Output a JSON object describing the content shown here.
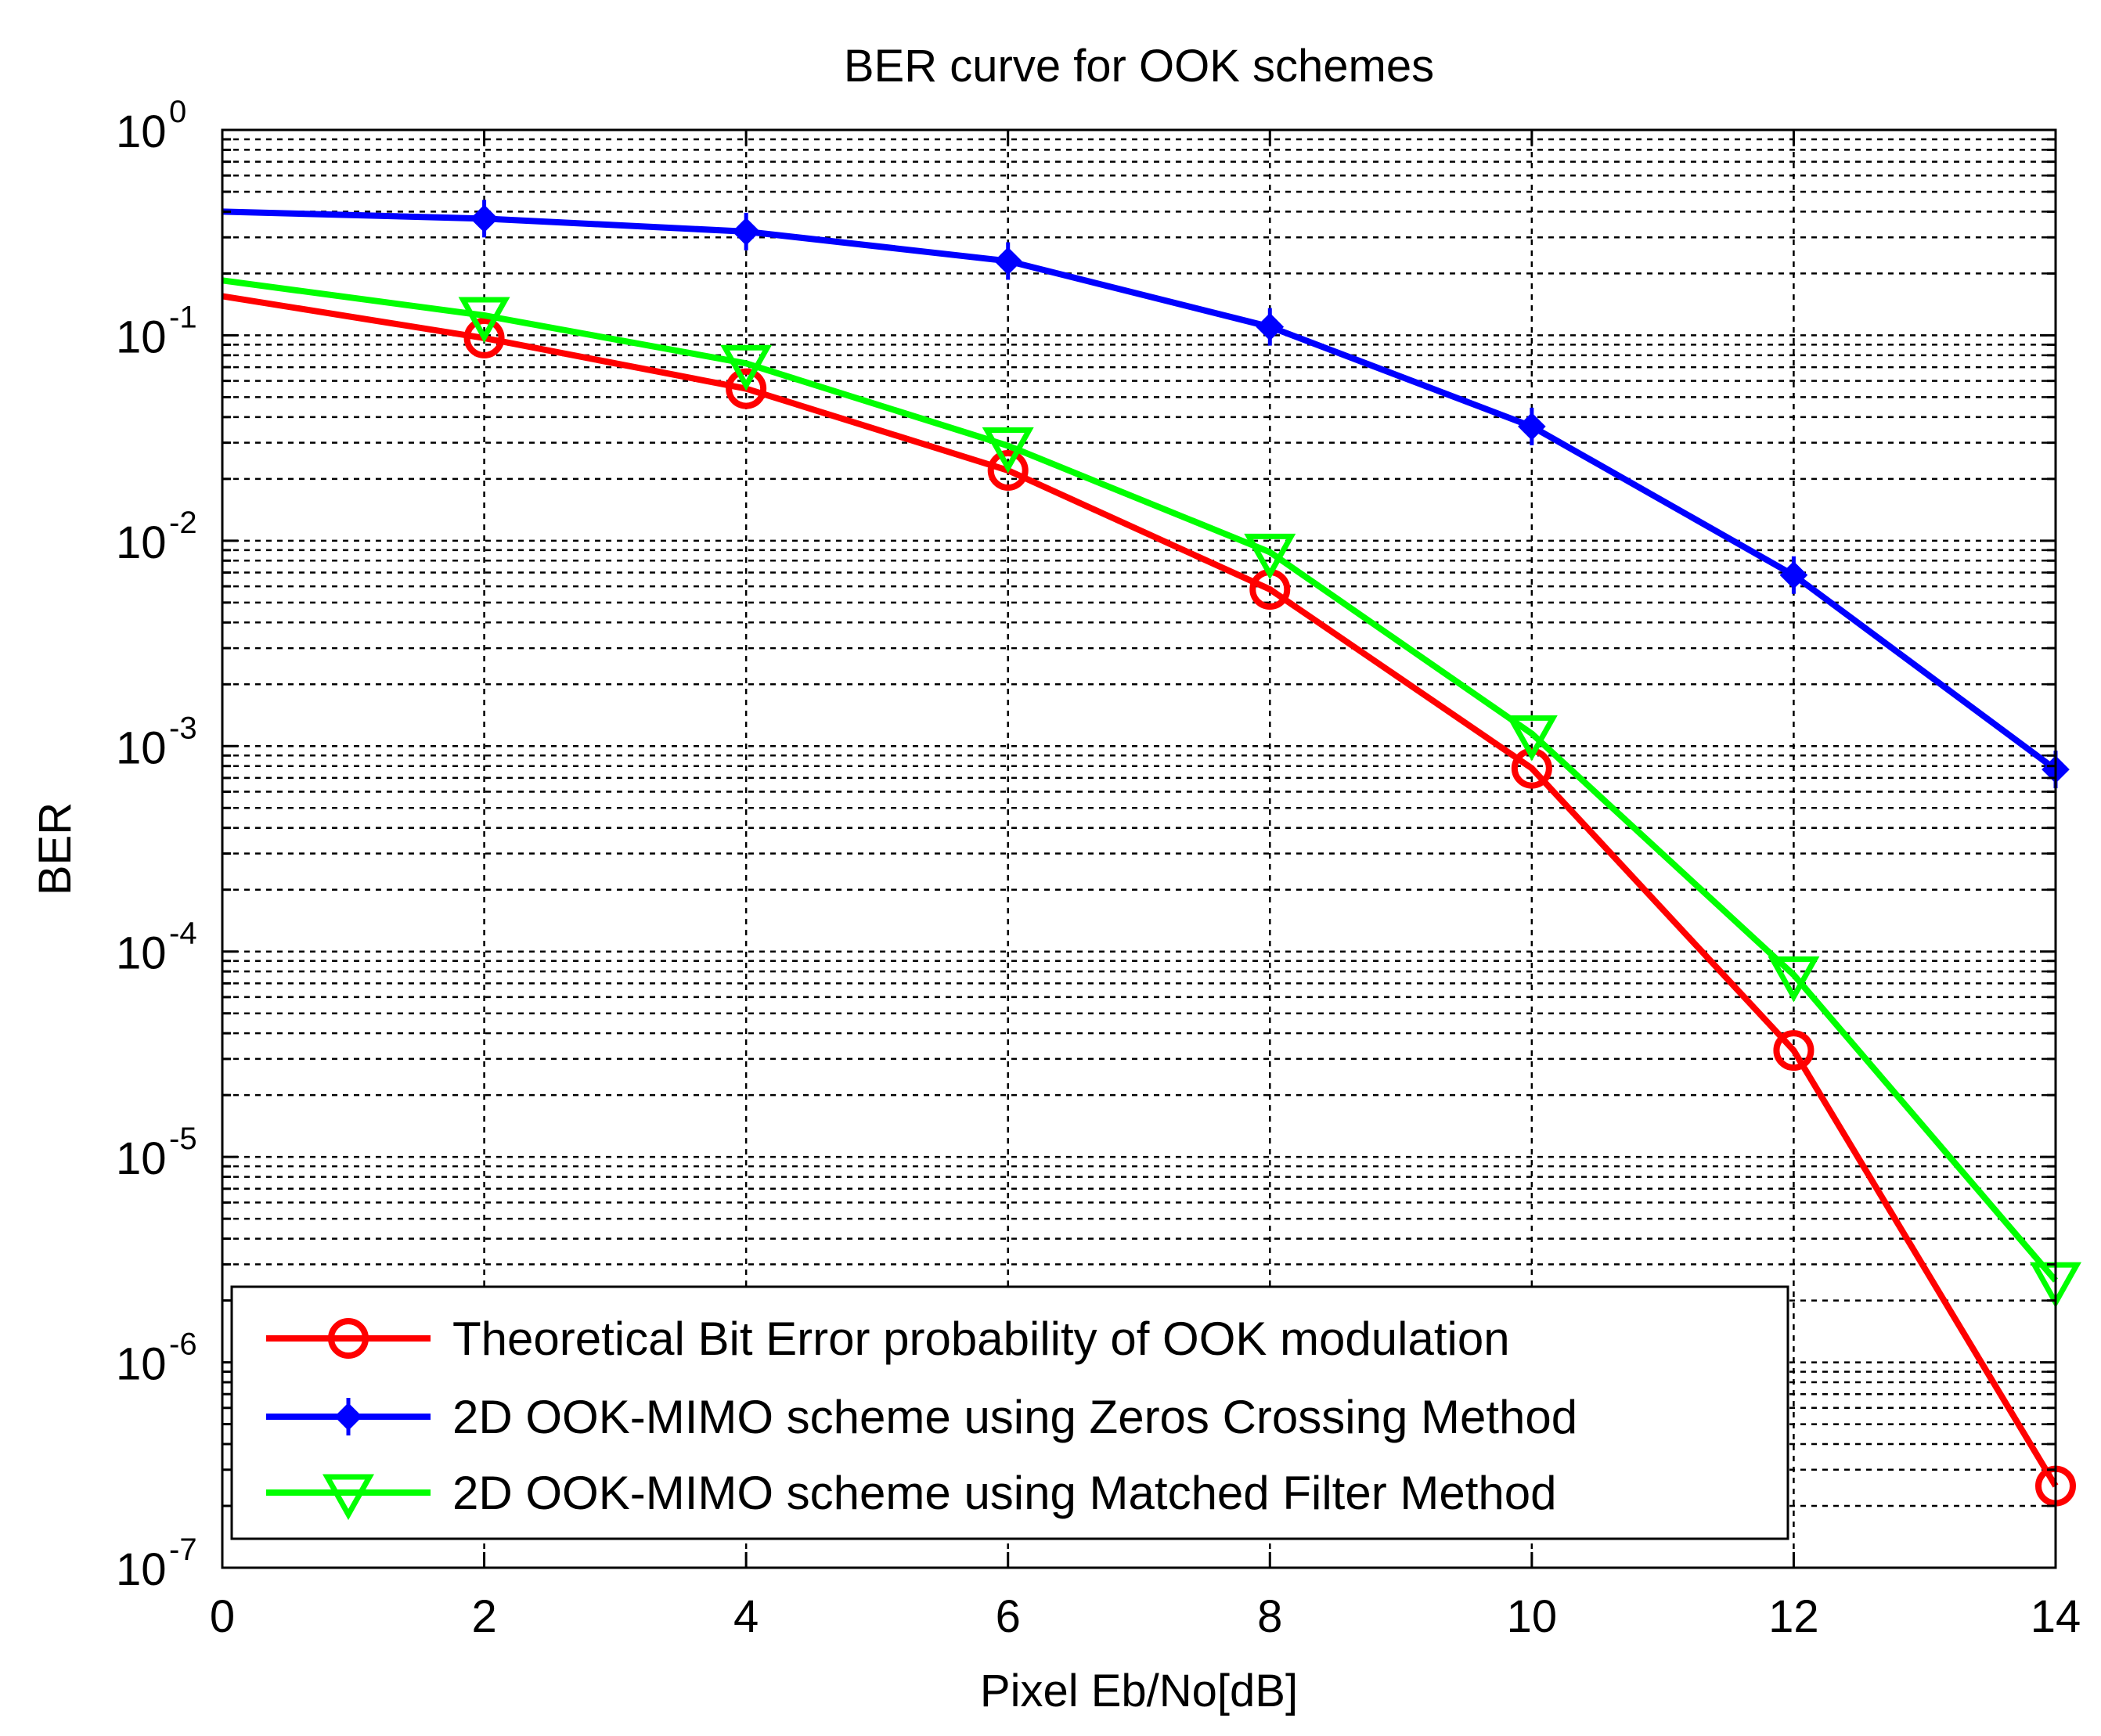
{
  "chart_data": {
    "type": "line",
    "title": "BER curve for OOK schemes",
    "xlabel": "Pixel Eb/No[dB]",
    "ylabel": "BER",
    "xscale": "linear",
    "yscale": "log",
    "xlim": [
      0,
      14
    ],
    "ylim": [
      1e-07,
      1
    ],
    "grid": true,
    "grid_style": "dotted",
    "x_ticks": [
      0,
      2,
      4,
      6,
      8,
      10,
      12,
      14
    ],
    "x_tick_labels": [
      "0",
      "2",
      "4",
      "6",
      "8",
      "10",
      "12",
      "14"
    ],
    "y_ticks": [
      {
        "value": 1,
        "base": "10",
        "exp": "0"
      },
      {
        "value": 0.1,
        "base": "10",
        "exp": "-1"
      },
      {
        "value": 0.01,
        "base": "10",
        "exp": "-2"
      },
      {
        "value": 0.001,
        "base": "10",
        "exp": "-3"
      },
      {
        "value": 0.0001,
        "base": "10",
        "exp": "-4"
      },
      {
        "value": 1e-05,
        "base": "10",
        "exp": "-5"
      },
      {
        "value": 1e-06,
        "base": "10",
        "exp": "-6"
      },
      {
        "value": 1e-07,
        "base": "10",
        "exp": "-7"
      }
    ],
    "legend_position": "bottom-left",
    "series": [
      {
        "name": "Theoretical Bit Error probability of OOK modulation",
        "color": "#ff0000",
        "marker": "circle",
        "x": [
          0,
          2,
          4,
          6,
          8,
          10,
          12,
          14
        ],
        "values": [
          0.155,
          0.097,
          0.055,
          0.022,
          0.0058,
          0.00078,
          3.3e-05,
          2.5e-07
        ],
        "marker_x": [
          2,
          4,
          6,
          8,
          10,
          12,
          14
        ]
      },
      {
        "name": "2D OOK-MIMO scheme using Zeros Crossing Method",
        "color": "#0000ff",
        "marker": "diamond",
        "x": [
          0,
          2,
          4,
          6,
          8,
          10,
          12,
          14
        ],
        "values": [
          0.4,
          0.37,
          0.32,
          0.23,
          0.11,
          0.036,
          0.0068,
          0.00077
        ],
        "marker_x": [
          2,
          4,
          6,
          8,
          10,
          12,
          14
        ]
      },
      {
        "name": "2D OOK-MIMO scheme using Matched Filter Method",
        "color": "#00ff00",
        "marker": "triangle-down",
        "x": [
          0,
          2,
          4,
          6,
          8,
          10,
          12,
          14
        ],
        "values": [
          0.185,
          0.125,
          0.073,
          0.029,
          0.0088,
          0.00115,
          7.7e-05,
          2.5e-06
        ],
        "marker_x": [
          2,
          4,
          6,
          8,
          10,
          12,
          14
        ]
      }
    ]
  }
}
